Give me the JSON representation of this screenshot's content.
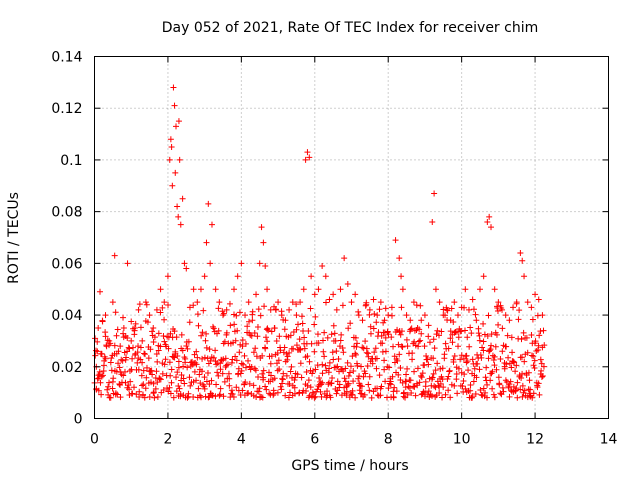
{
  "chart_data": {
    "type": "scatter",
    "title": "Day 052 of 2021, Rate Of TEC Index for receiver chim",
    "xlabel": "GPS time / hours",
    "ylabel": "ROTI / TECUs",
    "xlim": [
      0,
      14
    ],
    "ylim": [
      0,
      0.14
    ],
    "xticks": [
      "0",
      "2",
      "4",
      "6",
      "8",
      "10",
      "12",
      "14"
    ],
    "yticks": [
      "0",
      "0.02",
      "0.04",
      "0.06",
      "0.08",
      "0.1",
      "0.12",
      "0.14"
    ],
    "grid": true,
    "marker": "+",
    "color": "#ff0000",
    "series": [
      {
        "name": "ROTI",
        "data_extent_hours": [
          0,
          12.25
        ],
        "baseline_band": [
          0.008,
          0.035
        ],
        "x": [
          0.05,
          0.1,
          0.15,
          0.2,
          0.3,
          0.4,
          0.5,
          0.55,
          0.6,
          0.7,
          0.8,
          0.9,
          1.0,
          1.1,
          1.2,
          1.3,
          1.4,
          1.5,
          1.6,
          1.7,
          1.8,
          1.9,
          2.0,
          2.05,
          2.08,
          2.1,
          2.12,
          2.15,
          2.18,
          2.2,
          2.22,
          2.25,
          2.28,
          2.3,
          2.32,
          2.35,
          2.4,
          2.45,
          2.5,
          2.6,
          2.7,
          2.8,
          2.9,
          3.0,
          3.05,
          3.1,
          3.15,
          3.2,
          3.3,
          3.4,
          3.5,
          3.6,
          3.7,
          3.8,
          3.9,
          4.0,
          4.1,
          4.2,
          4.3,
          4.4,
          4.5,
          4.55,
          4.6,
          4.65,
          4.7,
          4.8,
          4.9,
          5.0,
          5.1,
          5.2,
          5.3,
          5.4,
          5.5,
          5.6,
          5.7,
          5.75,
          5.8,
          5.85,
          5.9,
          6.0,
          6.1,
          6.2,
          6.3,
          6.4,
          6.5,
          6.6,
          6.7,
          6.8,
          6.9,
          7.0,
          7.1,
          7.2,
          7.3,
          7.4,
          7.5,
          7.6,
          7.7,
          7.8,
          7.9,
          8.0,
          8.1,
          8.2,
          8.3,
          8.35,
          8.4,
          8.5,
          8.6,
          8.7,
          8.8,
          8.9,
          9.0,
          9.1,
          9.2,
          9.25,
          9.3,
          9.4,
          9.5,
          9.6,
          9.7,
          9.8,
          9.9,
          10.0,
          10.1,
          10.2,
          10.3,
          10.4,
          10.5,
          10.6,
          10.7,
          10.75,
          10.8,
          10.9,
          11.0,
          11.1,
          11.2,
          11.3,
          11.4,
          11.5,
          11.6,
          11.65,
          11.7,
          11.8,
          11.9,
          12.0,
          12.1,
          12.2
        ],
        "y": [
          0.02,
          0.035,
          0.049,
          0.025,
          0.04,
          0.03,
          0.045,
          0.063,
          0.032,
          0.028,
          0.035,
          0.06,
          0.03,
          0.035,
          0.042,
          0.03,
          0.045,
          0.04,
          0.035,
          0.042,
          0.05,
          0.045,
          0.055,
          0.1,
          0.108,
          0.105,
          0.09,
          0.128,
          0.121,
          0.095,
          0.113,
          0.082,
          0.078,
          0.115,
          0.1,
          0.075,
          0.085,
          0.06,
          0.058,
          0.043,
          0.05,
          0.045,
          0.05,
          0.055,
          0.068,
          0.083,
          0.06,
          0.075,
          0.05,
          0.045,
          0.04,
          0.042,
          0.036,
          0.05,
          0.055,
          0.06,
          0.04,
          0.045,
          0.038,
          0.048,
          0.06,
          0.074,
          0.068,
          0.059,
          0.05,
          0.042,
          0.035,
          0.045,
          0.04,
          0.038,
          0.042,
          0.045,
          0.04,
          0.045,
          0.05,
          0.1,
          0.103,
          0.101,
          0.055,
          0.048,
          0.05,
          0.059,
          0.055,
          0.046,
          0.048,
          0.042,
          0.05,
          0.062,
          0.052,
          0.045,
          0.048,
          0.04,
          0.038,
          0.044,
          0.042,
          0.046,
          0.04,
          0.045,
          0.038,
          0.04,
          0.043,
          0.069,
          0.062,
          0.055,
          0.05,
          0.04,
          0.038,
          0.045,
          0.035,
          0.038,
          0.04,
          0.036,
          0.076,
          0.087,
          0.05,
          0.045,
          0.04,
          0.042,
          0.038,
          0.045,
          0.04,
          0.043,
          0.05,
          0.042,
          0.046,
          0.038,
          0.05,
          0.055,
          0.076,
          0.078,
          0.074,
          0.05,
          0.045,
          0.042,
          0.04,
          0.038,
          0.043,
          0.045,
          0.064,
          0.061,
          0.055,
          0.045,
          0.043,
          0.048,
          0.046,
          0.04
        ]
      }
    ]
  }
}
